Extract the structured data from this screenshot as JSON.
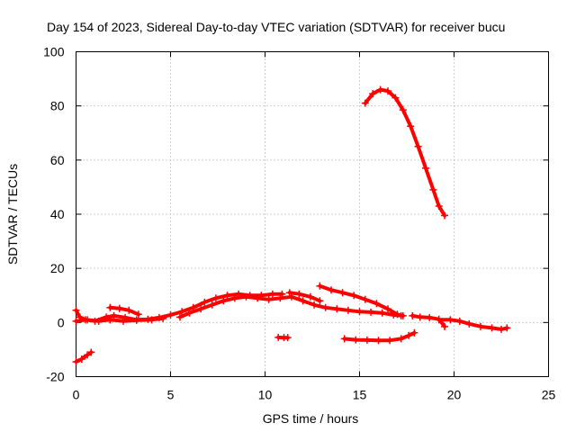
{
  "chart_data": {
    "type": "scatter",
    "title": "Day 154 of 2023, Sidereal Day-to-day VTEC variation (SDTVAR) for receiver bucu",
    "xlabel": "GPS time / hours",
    "ylabel": "SDTVAR / TECUs",
    "xlim": [
      0,
      25
    ],
    "ylim": [
      -20,
      100
    ],
    "xticks": [
      0,
      5,
      10,
      15,
      20,
      25
    ],
    "yticks": [
      -20,
      0,
      20,
      40,
      60,
      80,
      100
    ],
    "grid": true,
    "marker": "plus",
    "color": "#ff0000",
    "series": [
      {
        "name": "arc-1",
        "points": [
          [
            0.0,
            -14.5
          ],
          [
            0.3,
            -13.5
          ],
          [
            0.6,
            -12
          ],
          [
            0.8,
            -11
          ]
        ]
      },
      {
        "name": "arc-2",
        "points": [
          [
            0.0,
            4.5
          ],
          [
            0.2,
            2
          ],
          [
            0.5,
            1
          ],
          [
            1.0,
            0.5
          ],
          [
            1.6,
            2
          ],
          [
            2.0,
            2.5
          ],
          [
            2.6,
            1.8
          ],
          [
            3.2,
            1
          ],
          [
            3.8,
            1.2
          ],
          [
            4.4,
            1.8
          ],
          [
            5.0,
            2.8
          ],
          [
            5.6,
            4
          ],
          [
            6.2,
            5.5
          ],
          [
            6.8,
            7.5
          ],
          [
            7.4,
            9
          ],
          [
            8.0,
            10
          ],
          [
            8.6,
            10.5
          ],
          [
            9.2,
            10
          ],
          [
            9.8,
            10
          ],
          [
            10.4,
            10.5
          ],
          [
            10.9,
            10.5
          ]
        ]
      },
      {
        "name": "arc-3",
        "points": [
          [
            0.0,
            0.5
          ],
          [
            0.6,
            1
          ],
          [
            1.2,
            0.5
          ],
          [
            1.8,
            1
          ],
          [
            2.5,
            0.5
          ],
          [
            3.2,
            0.8
          ],
          [
            4.0,
            1
          ],
          [
            4.6,
            1.5
          ]
        ]
      },
      {
        "name": "arc-4",
        "points": [
          [
            1.8,
            5.5
          ],
          [
            2.3,
            5.2
          ],
          [
            2.8,
            4.5
          ],
          [
            3.3,
            3
          ]
        ]
      },
      {
        "name": "arc-5",
        "points": [
          [
            5.5,
            2
          ],
          [
            6.0,
            3.5
          ],
          [
            6.6,
            5
          ],
          [
            7.2,
            6.5
          ],
          [
            7.8,
            8
          ],
          [
            8.4,
            9
          ],
          [
            9.0,
            9.5
          ],
          [
            9.6,
            9
          ],
          [
            10.2,
            8.5
          ],
          [
            10.8,
            9
          ],
          [
            11.4,
            9.5
          ],
          [
            12.0,
            8
          ],
          [
            12.6,
            6.5
          ],
          [
            13.2,
            5.5
          ],
          [
            13.8,
            5
          ],
          [
            14.4,
            4.5
          ],
          [
            15.0,
            4
          ],
          [
            15.6,
            3.8
          ],
          [
            16.2,
            3.5
          ],
          [
            16.8,
            2.8
          ],
          [
            17.2,
            2.5
          ]
        ]
      },
      {
        "name": "arc-6",
        "points": [
          [
            10.7,
            -5.5
          ],
          [
            11.0,
            -5.6
          ],
          [
            11.2,
            -5.6
          ]
        ]
      },
      {
        "name": "arc-7",
        "points": [
          [
            11.3,
            11
          ],
          [
            11.8,
            10.5
          ],
          [
            12.4,
            9.5
          ],
          [
            12.9,
            8
          ]
        ]
      },
      {
        "name": "arc-8",
        "points": [
          [
            12.9,
            13.5
          ],
          [
            13.5,
            12
          ],
          [
            14.1,
            11
          ],
          [
            14.7,
            10
          ],
          [
            15.3,
            8.5
          ],
          [
            15.9,
            7
          ],
          [
            16.5,
            5
          ],
          [
            17.0,
            3
          ],
          [
            17.3,
            2.5
          ]
        ]
      },
      {
        "name": "arc-9",
        "points": [
          [
            14.2,
            -6
          ],
          [
            14.8,
            -6.4
          ],
          [
            15.4,
            -6.5
          ],
          [
            16.0,
            -6.6
          ],
          [
            16.6,
            -6.6
          ],
          [
            17.2,
            -6
          ],
          [
            17.6,
            -4.8
          ],
          [
            17.9,
            -3.8
          ]
        ]
      },
      {
        "name": "arc-10",
        "points": [
          [
            15.3,
            81
          ],
          [
            15.7,
            84.5
          ],
          [
            16.1,
            86
          ],
          [
            16.5,
            85.5
          ],
          [
            16.9,
            83
          ],
          [
            17.3,
            78.5
          ],
          [
            17.7,
            72.5
          ],
          [
            18.1,
            65
          ],
          [
            18.5,
            57
          ],
          [
            18.9,
            49
          ],
          [
            19.2,
            43
          ],
          [
            19.5,
            39.5
          ]
        ]
      },
      {
        "name": "arc-11",
        "points": [
          [
            17.8,
            2.5
          ],
          [
            18.2,
            2
          ],
          [
            18.7,
            1.8
          ],
          [
            19.2,
            1.2
          ],
          [
            19.5,
            -1.5
          ]
        ]
      },
      {
        "name": "arc-12",
        "points": [
          [
            19.2,
            1
          ],
          [
            19.8,
            1
          ],
          [
            20.3,
            0.5
          ],
          [
            20.8,
            -0.5
          ],
          [
            21.4,
            -1.5
          ],
          [
            22.0,
            -2
          ],
          [
            22.5,
            -2.5
          ],
          [
            22.8,
            -2
          ]
        ]
      }
    ]
  }
}
